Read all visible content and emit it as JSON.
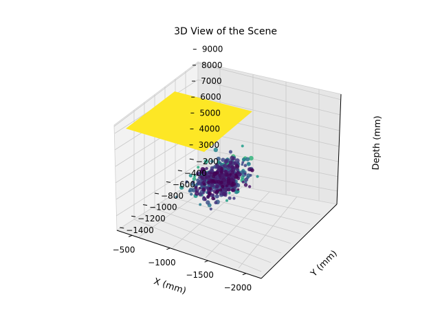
{
  "chart_data": {
    "type": "scatter",
    "projection": "3d",
    "title": "3D View of the Scene",
    "xlabel": "X (mm)",
    "ylabel": "Y (mm)",
    "zlabel": "Depth (mm)",
    "xlim": [
      -2200,
      -300
    ],
    "ylim": [
      -1450,
      -150
    ],
    "zlim": [
      2300,
      9200
    ],
    "xticks": [
      -2000,
      -1500,
      -1000,
      -500
    ],
    "yticks": [
      -1400,
      -1200,
      -1000,
      -800,
      -600,
      -400,
      -200
    ],
    "zticks": [
      3000,
      4000,
      5000,
      6000,
      7000,
      8000,
      9000
    ],
    "xticklabels": [
      "−2000",
      "−1500",
      "−1000",
      "−500"
    ],
    "yticklabels": [
      "−1400",
      "−1200",
      "−1000",
      "−800",
      "−600",
      "−400",
      "−200"
    ],
    "zticklabels": [
      "3000",
      "4000",
      "5000",
      "6000",
      "7000",
      "8000",
      "9000"
    ],
    "grid": true,
    "colormap": "viridis",
    "plane": {
      "z": 9000,
      "x_range": [
        -2200,
        -1000
      ],
      "y_range": [
        -1050,
        -150
      ],
      "color": "#fde725"
    },
    "points_cluster": [
      {
        "x": -900,
        "y": -450,
        "z": 3000,
        "spread": 120,
        "count": 140
      },
      {
        "x": -1000,
        "y": -600,
        "z": 3500,
        "spread": 130,
        "count": 120
      },
      {
        "x": -1100,
        "y": -750,
        "z": 4200,
        "spread": 140,
        "count": 110
      },
      {
        "x": -1200,
        "y": -900,
        "z": 5000,
        "spread": 150,
        "count": 90
      },
      {
        "x": -1300,
        "y": -1050,
        "z": 5800,
        "spread": 150,
        "count": 70
      },
      {
        "x": -1400,
        "y": -1150,
        "z": 6500,
        "spread": 140,
        "count": 40
      }
    ]
  }
}
